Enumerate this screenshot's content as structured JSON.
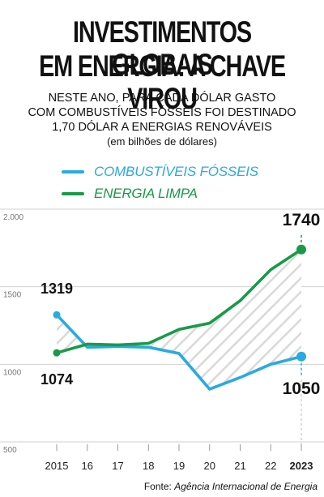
{
  "header": {
    "title_line1": "INVESTIMENTOS GLOBAIS",
    "title_line2": "EM ENERGIA: A CHAVE VIROU",
    "subtitle_line1": "NESTE ANO, PARA CADA DÓLAR GASTO",
    "subtitle_line2": "COM COMBUSTÍVEIS FÓSSEIS FOI DESTINADO",
    "subtitle_line3": "1,70 DÓLAR A ENERGIAS RENOVÁVEIS",
    "unit_note": "(em bilhões de dólares)"
  },
  "legend": {
    "fossil": {
      "label": "COMBUSTÍVEIS FÓSSEIS",
      "color": "#2aaae2"
    },
    "clean": {
      "label": "ENERGIA LIMPA",
      "color": "#1a9a48"
    }
  },
  "source": {
    "prefix": "Fonte: ",
    "name": "Agência Internacional de Energia"
  },
  "chart_data": {
    "type": "line",
    "categories": [
      "2015",
      "16",
      "17",
      "18",
      "19",
      "20",
      "21",
      "22",
      "2023"
    ],
    "series": [
      {
        "name": "COMBUSTÍVEIS FÓSSEIS",
        "color": "#2aaae2",
        "values": [
          1319,
          1110,
          1115,
          1110,
          1070,
          840,
          915,
          1000,
          1050
        ]
      },
      {
        "name": "ENERGIA LIMPA",
        "color": "#1a9a48",
        "values": [
          1074,
          1130,
          1125,
          1135,
          1225,
          1265,
          1410,
          1610,
          1740
        ]
      }
    ],
    "ylim": [
      500,
      2000
    ],
    "yticks": [
      "500",
      "1000",
      "1500",
      "2.000"
    ],
    "ytick_values": [
      500,
      1000,
      1500,
      2000
    ],
    "labels": [
      {
        "text": "1319",
        "series": 0,
        "index": 0
      },
      {
        "text": "1074",
        "series": 1,
        "index": 0
      },
      {
        "text": "1740",
        "series": 1,
        "index": 8
      },
      {
        "text": "1050",
        "series": 0,
        "index": 8
      }
    ],
    "highlight_category": "2023",
    "fill_between": "hatched",
    "grid": true
  }
}
